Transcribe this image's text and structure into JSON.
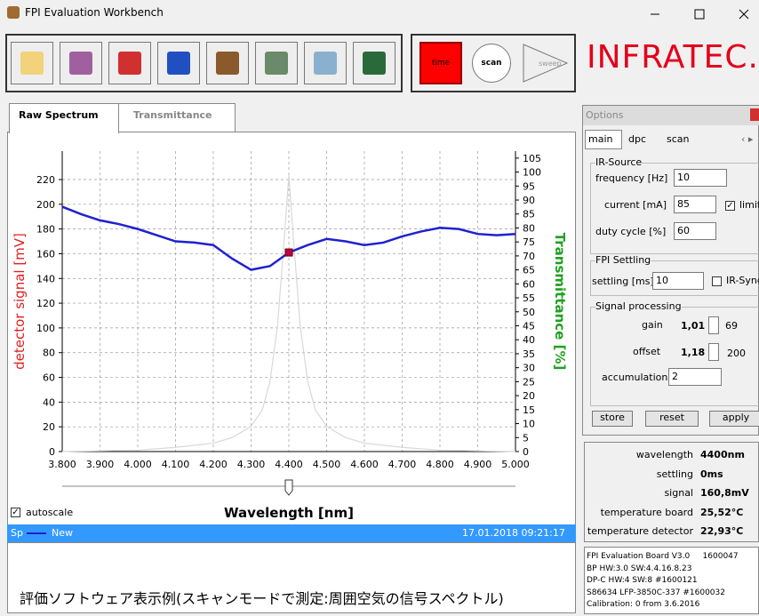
{
  "window": {
    "title": "FPI Evaluation Workbench"
  },
  "toolbar": {
    "buttons": [
      "time",
      "scan",
      "sweep"
    ],
    "logo": "INFRATEC."
  },
  "tabs": [
    "Raw Spectrum",
    "Transmittance"
  ],
  "chart_data": {
    "type": "line",
    "xlabel": "Wavelength [nm]",
    "ylabel": "detector signal [mV]",
    "y2label": "Transmittance [%]",
    "x": [
      3.8,
      3.85,
      3.9,
      3.95,
      4.0,
      4.05,
      4.1,
      4.15,
      4.2,
      4.25,
      4.3,
      4.35,
      4.4,
      4.45,
      4.5,
      4.55,
      4.6,
      4.65,
      4.7,
      4.75,
      4.8,
      4.85,
      4.9,
      4.95,
      5.0
    ],
    "series": [
      {
        "name": "New",
        "color": "#2020d0",
        "values": [
          198,
          192,
          187,
          184,
          180,
          175,
          170,
          169,
          167,
          156,
          147,
          150,
          161,
          167,
          172,
          170,
          167,
          169,
          174,
          178,
          181,
          180,
          176,
          175,
          176
        ]
      },
      {
        "color": "#d8d8d8",
        "axis": "y2",
        "x": [
          3.8,
          4.0,
          4.1,
          4.2,
          4.25,
          4.3,
          4.33,
          4.35,
          4.37,
          4.39,
          4.4,
          4.41,
          4.43,
          4.45,
          4.47,
          4.5,
          4.55,
          4.6,
          4.7,
          4.8,
          5.0
        ],
        "values": [
          0,
          0.5,
          1.5,
          3,
          5,
          9,
          15,
          25,
          45,
          80,
          99,
          80,
          45,
          25,
          15,
          9,
          5,
          3,
          1.5,
          0.5,
          0
        ]
      }
    ],
    "marker": {
      "x": 4.4,
      "y": 161,
      "color": "#c00040"
    },
    "xlim": [
      3.8,
      5.0
    ],
    "xticks": [
      {
        "value": 3.8,
        "label": "3.800"
      },
      {
        "value": 3.9,
        "label": "3.900"
      },
      {
        "value": 4.0,
        "label": "4.000"
      },
      {
        "value": 4.1,
        "label": "4.100"
      },
      {
        "value": 4.2,
        "label": "4.200"
      },
      {
        "value": 4.3,
        "label": "4.300"
      },
      {
        "value": 4.4,
        "label": "4.400"
      },
      {
        "value": 4.5,
        "label": "4.500"
      },
      {
        "value": 4.6,
        "label": "4.600"
      },
      {
        "value": 4.7,
        "label": "4.700"
      },
      {
        "value": 4.8,
        "label": "4.800"
      },
      {
        "value": 4.9,
        "label": "4.900"
      },
      {
        "value": 5.0,
        "label": "5.000"
      }
    ],
    "ylim": [
      0,
      243
    ],
    "yticks": [
      0,
      20,
      40,
      60,
      80,
      100,
      120,
      140,
      160,
      180,
      200,
      220
    ],
    "y2lim": [
      0,
      107.5
    ],
    "y2ticks": [
      0,
      5,
      10,
      15,
      20,
      25,
      30,
      35,
      40,
      45,
      50,
      55,
      60,
      65,
      70,
      75,
      80,
      85,
      90,
      95,
      100,
      105
    ],
    "grid": true
  },
  "autoscale": {
    "label": "autoscale",
    "checked": true
  },
  "status": {
    "name": "Sp",
    "series": "New",
    "timestamp": "17.01.2018 09:21:17"
  },
  "caption": "評価ソフトウェア表示例(スキャンモードで測定:周囲空気の信号スペクトル)",
  "options": {
    "title": "Options",
    "tabs": [
      "main",
      "dpc",
      "scan"
    ],
    "ir_source": {
      "title": "IR-Source",
      "frequency_label": "frequency [Hz]",
      "frequency": "10",
      "current_label": "current [mA]",
      "current": "85",
      "limit_label": "limit",
      "limit": true,
      "duty_label": "duty cycle [%]",
      "duty": "60"
    },
    "fpi_settling": {
      "title": "FPI Settling",
      "settling_label": "settling [ms]",
      "settling": "10",
      "sync_label": "IR-Sync",
      "sync": false
    },
    "signal_processing": {
      "title": "Signal processing",
      "gain_label": "gain",
      "gain": "1,01",
      "gain_raw": "69",
      "offset_label": "offset",
      "offset": "1,18",
      "offset_raw": "200",
      "accumulation_label": "accumulation",
      "accumulation": "2"
    },
    "buttons": [
      "store",
      "reset",
      "apply"
    ]
  },
  "readout": [
    {
      "label": "wavelength",
      "value": "4400nm"
    },
    {
      "label": "settling",
      "value": "0ms"
    },
    {
      "label": "signal",
      "value": "160,8mV"
    },
    {
      "label": "temperature board",
      "value": "25,52°C"
    },
    {
      "label": "temperature detector",
      "value": "22,93°C"
    }
  ],
  "board_info": [
    "FPI Evaluation Board V3.0     1600047",
    "BP HW:3.0 SW:4.4.16.8.23",
    "DP-C HW:4 SW:8 #1600121",
    "S86634 LFP-3850C-337 #1600032",
    "Calibration: 0 from 3.6.2016"
  ]
}
